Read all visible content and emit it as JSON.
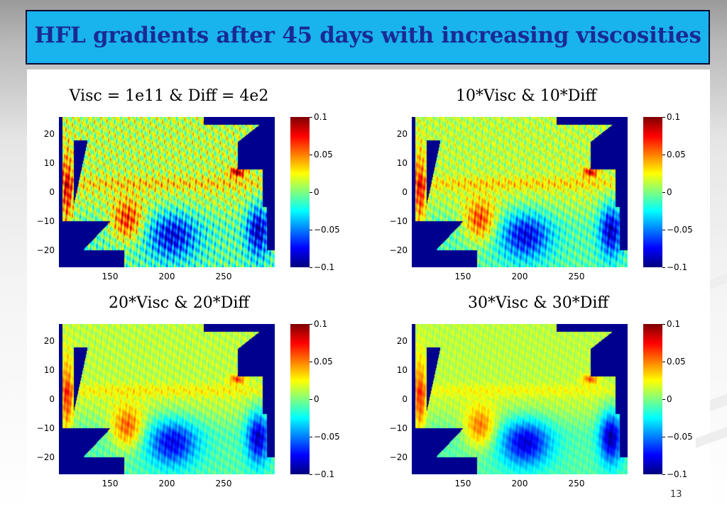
{
  "slide": {
    "title": "HFL gradients after 45 days with increasing viscosities",
    "page_number": "13"
  },
  "colors": {
    "title_bar": "#19b3ee",
    "title_text": "#1a2a95",
    "land": "#00008f",
    "colormap": "jet"
  },
  "chart_data": [
    {
      "type": "heatmap",
      "title": "Visc = 1e11 & Diff  = 4e2",
      "x_ticks": [
        150,
        200,
        250
      ],
      "y_ticks": [
        20,
        10,
        0,
        -10,
        -20
      ],
      "xlim": [
        105,
        295
      ],
      "ylim": [
        -26,
        26
      ],
      "colorbar": {
        "min": -0.1,
        "max": 0.1,
        "ticks": [
          "0.1",
          "0.05",
          "0",
          "−0.05",
          "−0.1"
        ]
      },
      "x_tick_labels": [
        "150",
        "200",
        "250"
      ],
      "y_tick_labels": [
        "20",
        "10",
        "0",
        "−10",
        "−20"
      ],
      "features": [
        {
          "name": "western boundary warm",
          "lon": 112,
          "lat": 0,
          "value": 0.06
        },
        {
          "name": "south-west warm",
          "lon": 165,
          "lat": -10,
          "value": 0.07
        },
        {
          "name": "north-east warm streak",
          "lon": 262,
          "lat": 7,
          "value": 0.085
        },
        {
          "name": "equatorial band",
          "lon": 200,
          "lat": 3,
          "value": 0.02
        },
        {
          "name": "southern cold patch",
          "lon": 205,
          "lat": -15,
          "value": -0.07
        },
        {
          "name": "south-east cold patch",
          "lon": 280,
          "lat": -13,
          "value": -0.08
        }
      ],
      "smoothness": 0.35
    },
    {
      "type": "heatmap",
      "title": "10*Visc  & 10*Diff",
      "x_ticks": [
        150,
        200,
        250
      ],
      "y_ticks": [
        20,
        10,
        0,
        -10,
        -20
      ],
      "xlim": [
        105,
        295
      ],
      "ylim": [
        -26,
        26
      ],
      "colorbar": {
        "min": -0.1,
        "max": 0.1,
        "ticks": [
          "0.1",
          "0.05",
          "0",
          "−0.05",
          "−0.1"
        ]
      },
      "x_tick_labels": [
        "150",
        "200",
        "250"
      ],
      "y_tick_labels": [
        "20",
        "10",
        "0",
        "−10",
        "−20"
      ],
      "features": [
        {
          "name": "western boundary warm",
          "lon": 112,
          "lat": 0,
          "value": 0.055
        },
        {
          "name": "south-west warm",
          "lon": 165,
          "lat": -10,
          "value": 0.065
        },
        {
          "name": "north-east warm streak",
          "lon": 262,
          "lat": 7,
          "value": 0.07
        },
        {
          "name": "equatorial band",
          "lon": 200,
          "lat": 3,
          "value": 0.02
        },
        {
          "name": "southern cold patch",
          "lon": 205,
          "lat": -15,
          "value": -0.07
        },
        {
          "name": "south-east cold patch",
          "lon": 280,
          "lat": -13,
          "value": -0.08
        }
      ],
      "smoothness": 0.6
    },
    {
      "type": "heatmap",
      "title": "20*Visc  & 20*Diff",
      "x_ticks": [
        150,
        200,
        250
      ],
      "y_ticks": [
        20,
        10,
        0,
        -10,
        -20
      ],
      "xlim": [
        105,
        295
      ],
      "ylim": [
        -26,
        26
      ],
      "colorbar": {
        "min": -0.1,
        "max": 0.1,
        "ticks": [
          "0.1",
          "0.05",
          "0",
          "−0.05",
          "−0.1"
        ]
      },
      "x_tick_labels": [
        "150",
        "200",
        "250"
      ],
      "y_tick_labels": [
        "20",
        "10",
        "0",
        "−10",
        "−20"
      ],
      "features": [
        {
          "name": "western boundary warm",
          "lon": 112,
          "lat": 0,
          "value": 0.05
        },
        {
          "name": "south-west warm",
          "lon": 165,
          "lat": -10,
          "value": 0.06
        },
        {
          "name": "north-east warm streak",
          "lon": 262,
          "lat": 7,
          "value": 0.05
        },
        {
          "name": "equatorial band",
          "lon": 200,
          "lat": 3,
          "value": 0.015
        },
        {
          "name": "southern cold patch",
          "lon": 205,
          "lat": -15,
          "value": -0.07
        },
        {
          "name": "south-east cold patch",
          "lon": 280,
          "lat": -13,
          "value": -0.08
        }
      ],
      "smoothness": 0.8
    },
    {
      "type": "heatmap",
      "title": "30*Visc  & 30*Diff",
      "x_ticks": [
        150,
        200,
        250
      ],
      "y_ticks": [
        20,
        10,
        0,
        -10,
        -20
      ],
      "xlim": [
        105,
        295
      ],
      "ylim": [
        -26,
        26
      ],
      "colorbar": {
        "min": -0.1,
        "max": 0.1,
        "ticks": [
          "0.1",
          "0.05",
          "0",
          "−0.05",
          "−0.1"
        ]
      },
      "x_tick_labels": [
        "150",
        "200",
        "250"
      ],
      "y_tick_labels": [
        "20",
        "10",
        "0",
        "−10",
        "−20"
      ],
      "features": [
        {
          "name": "western boundary warm",
          "lon": 112,
          "lat": 0,
          "value": 0.05
        },
        {
          "name": "south-west warm",
          "lon": 165,
          "lat": -10,
          "value": 0.055
        },
        {
          "name": "north-east warm streak",
          "lon": 262,
          "lat": 7,
          "value": 0.045
        },
        {
          "name": "equatorial band",
          "lon": 200,
          "lat": 3,
          "value": 0.012
        },
        {
          "name": "southern cold patch",
          "lon": 205,
          "lat": -15,
          "value": -0.075
        },
        {
          "name": "south-east cold patch",
          "lon": 280,
          "lat": -13,
          "value": -0.085
        }
      ],
      "smoothness": 0.9
    }
  ]
}
